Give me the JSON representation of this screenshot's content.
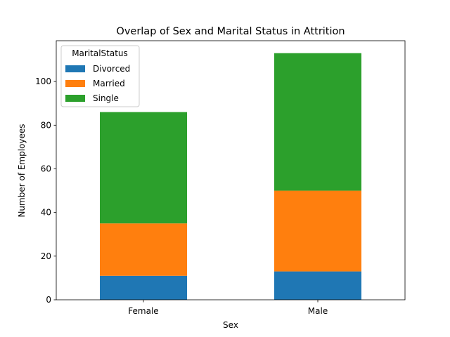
{
  "chart_data": {
    "type": "bar",
    "stacked": true,
    "title": "Overlap of Sex and Marital Status in Attrition",
    "xlabel": "Sex",
    "ylabel": "Number of Employees",
    "categories": [
      "Female",
      "Male"
    ],
    "series": [
      {
        "name": "Divorced",
        "values": [
          11,
          13
        ],
        "color": "#1f77b4"
      },
      {
        "name": "Married",
        "values": [
          24,
          37
        ],
        "color": "#ff7f0e"
      },
      {
        "name": "Single",
        "values": [
          51,
          63
        ],
        "color": "#2ca02c"
      }
    ],
    "ylim": [
      0,
      118.7
    ],
    "yticks": [
      0,
      20,
      40,
      60,
      80,
      100
    ],
    "legend": {
      "title": "MaritalStatus",
      "placement": "top-left"
    },
    "grid": false
  }
}
